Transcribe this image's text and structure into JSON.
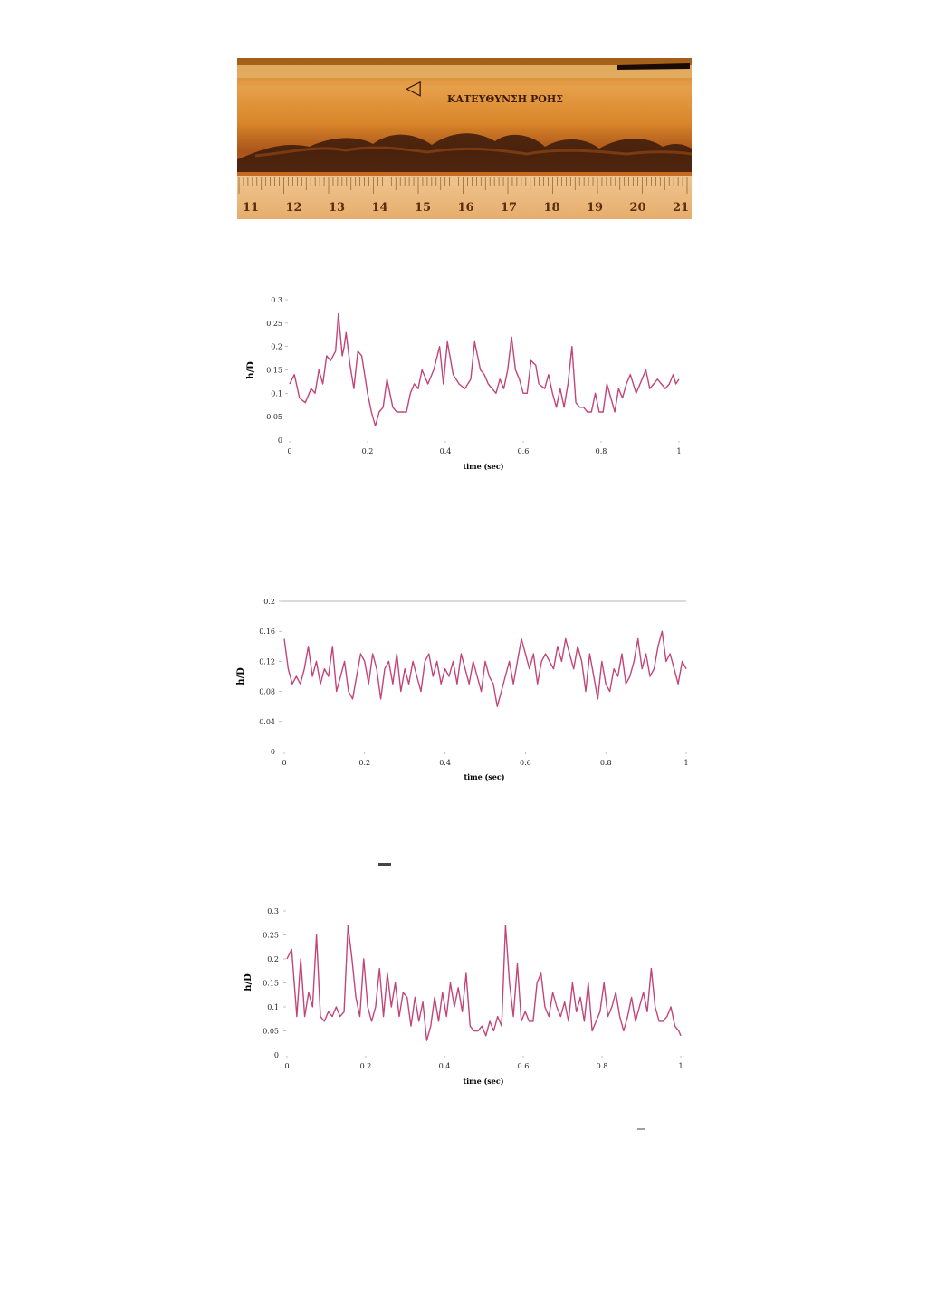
{
  "photo": {
    "caption": "ΚΑΤΕΥΘΥΝΣΗ ΡΟΗΣ",
    "ruler_numbers": [
      "11",
      "12",
      "13",
      "14",
      "15",
      "16",
      "17",
      "18",
      "19",
      "20",
      "21"
    ],
    "colors": {
      "tube": "#d9892c",
      "tube_dark": "#b55d18",
      "wave": "#2a140a",
      "ruler": "#e9b77c"
    }
  },
  "chart_data": [
    {
      "type": "line",
      "xlabel": "time (sec)",
      "ylabel": "h/D",
      "xlim": [
        0,
        1
      ],
      "ylim": [
        0,
        0.3
      ],
      "x_ticks": [
        "0",
        "0.2",
        "0.4",
        "0.6",
        "0.8",
        "1"
      ],
      "y_ticks": [
        "0",
        "0.05",
        "0.1",
        "0.15",
        "0.2",
        "0.25",
        "0.3"
      ],
      "gridlines": false,
      "line_color": "#c2457a",
      "series": [
        {
          "x": [
            0,
            0.012,
            0.025,
            0.04,
            0.055,
            0.065,
            0.075,
            0.085,
            0.095,
            0.105,
            0.118,
            0.125,
            0.135,
            0.14,
            0.145,
            0.155,
            0.165,
            0.175,
            0.185,
            0.2,
            0.21,
            0.22,
            0.23,
            0.24,
            0.25,
            0.265,
            0.275,
            0.285,
            0.3,
            0.31,
            0.32,
            0.33,
            0.34,
            0.355,
            0.37,
            0.385,
            0.395,
            0.405,
            0.42,
            0.435,
            0.45,
            0.465,
            0.475,
            0.49,
            0.5,
            0.51,
            0.52,
            0.53,
            0.54,
            0.55,
            0.56,
            0.57,
            0.58,
            0.59,
            0.6,
            0.61,
            0.62,
            0.632,
            0.64,
            0.655,
            0.665,
            0.675,
            0.685,
            0.695,
            0.705,
            0.715,
            0.725,
            0.735,
            0.745,
            0.755,
            0.765,
            0.775,
            0.785,
            0.795,
            0.805,
            0.815,
            0.825,
            0.835,
            0.845,
            0.855,
            0.865,
            0.875,
            0.89,
            0.905,
            0.915,
            0.925,
            0.935,
            0.945,
            0.955,
            0.965,
            0.975,
            0.985,
            0.992,
            1.0
          ],
          "y": [
            0.12,
            0.14,
            0.09,
            0.08,
            0.11,
            0.1,
            0.15,
            0.12,
            0.18,
            0.17,
            0.19,
            0.27,
            0.18,
            0.2,
            0.23,
            0.16,
            0.11,
            0.19,
            0.18,
            0.1,
            0.06,
            0.03,
            0.06,
            0.07,
            0.13,
            0.07,
            0.06,
            0.06,
            0.06,
            0.1,
            0.12,
            0.11,
            0.15,
            0.12,
            0.15,
            0.2,
            0.12,
            0.21,
            0.14,
            0.12,
            0.11,
            0.13,
            0.21,
            0.15,
            0.14,
            0.12,
            0.11,
            0.1,
            0.13,
            0.11,
            0.15,
            0.22,
            0.15,
            0.13,
            0.1,
            0.1,
            0.17,
            0.16,
            0.12,
            0.11,
            0.14,
            0.1,
            0.07,
            0.11,
            0.07,
            0.12,
            0.2,
            0.08,
            0.07,
            0.07,
            0.06,
            0.06,
            0.1,
            0.06,
            0.06,
            0.12,
            0.09,
            0.06,
            0.11,
            0.09,
            0.12,
            0.14,
            0.1,
            0.13,
            0.15,
            0.11,
            0.12,
            0.13,
            0.12,
            0.11,
            0.12,
            0.14,
            0.12,
            0.13
          ]
        }
      ]
    },
    {
      "type": "line",
      "xlabel": "time (sec)",
      "ylabel": "h/D",
      "xlim": [
        0,
        1
      ],
      "ylim": [
        0,
        0.2
      ],
      "x_ticks": [
        "0",
        "0.2",
        "0.4",
        "0.6",
        "0.8",
        "1"
      ],
      "y_ticks": [
        "0",
        "0.04",
        "0.08",
        "0.12",
        "0.16",
        "0.2"
      ],
      "gridlines": false,
      "top_rule": true,
      "line_color": "#c2457a",
      "series": [
        {
          "x": [
            0,
            0.01,
            0.02,
            0.03,
            0.04,
            0.05,
            0.06,
            0.07,
            0.08,
            0.09,
            0.1,
            0.11,
            0.12,
            0.13,
            0.14,
            0.15,
            0.16,
            0.17,
            0.18,
            0.19,
            0.2,
            0.21,
            0.22,
            0.23,
            0.24,
            0.25,
            0.26,
            0.27,
            0.28,
            0.29,
            0.3,
            0.31,
            0.32,
            0.33,
            0.34,
            0.35,
            0.36,
            0.37,
            0.38,
            0.39,
            0.4,
            0.41,
            0.42,
            0.43,
            0.44,
            0.45,
            0.46,
            0.47,
            0.48,
            0.49,
            0.5,
            0.51,
            0.52,
            0.53,
            0.54,
            0.55,
            0.56,
            0.57,
            0.58,
            0.59,
            0.6,
            0.61,
            0.62,
            0.63,
            0.64,
            0.65,
            0.66,
            0.67,
            0.68,
            0.69,
            0.7,
            0.71,
            0.72,
            0.73,
            0.74,
            0.75,
            0.76,
            0.77,
            0.78,
            0.79,
            0.8,
            0.81,
            0.82,
            0.83,
            0.84,
            0.85,
            0.86,
            0.87,
            0.88,
            0.89,
            0.9,
            0.91,
            0.92,
            0.93,
            0.94,
            0.95,
            0.96,
            0.97,
            0.98,
            0.99,
            1.0
          ],
          "y": [
            0.15,
            0.11,
            0.09,
            0.1,
            0.09,
            0.11,
            0.14,
            0.1,
            0.12,
            0.09,
            0.11,
            0.1,
            0.14,
            0.08,
            0.1,
            0.12,
            0.08,
            0.07,
            0.1,
            0.13,
            0.12,
            0.09,
            0.13,
            0.11,
            0.07,
            0.11,
            0.12,
            0.09,
            0.13,
            0.08,
            0.11,
            0.09,
            0.12,
            0.1,
            0.08,
            0.12,
            0.13,
            0.1,
            0.12,
            0.09,
            0.11,
            0.1,
            0.12,
            0.09,
            0.13,
            0.11,
            0.09,
            0.12,
            0.1,
            0.08,
            0.12,
            0.1,
            0.09,
            0.06,
            0.08,
            0.1,
            0.12,
            0.09,
            0.12,
            0.15,
            0.13,
            0.11,
            0.13,
            0.09,
            0.12,
            0.13,
            0.12,
            0.11,
            0.14,
            0.12,
            0.15,
            0.13,
            0.11,
            0.14,
            0.12,
            0.08,
            0.13,
            0.1,
            0.07,
            0.12,
            0.09,
            0.08,
            0.11,
            0.1,
            0.13,
            0.09,
            0.1,
            0.12,
            0.15,
            0.11,
            0.13,
            0.1,
            0.11,
            0.14,
            0.16,
            0.12,
            0.13,
            0.11,
            0.09,
            0.12,
            0.11
          ]
        }
      ]
    },
    {
      "type": "line",
      "xlabel": "time (sec)",
      "ylabel": "h/D",
      "xlim": [
        0,
        1
      ],
      "ylim": [
        0,
        0.3
      ],
      "x_ticks": [
        "0",
        "0.2",
        "0.4",
        "0.6",
        "0.8",
        "1"
      ],
      "y_ticks": [
        "0",
        "0.05",
        "0.1",
        "0.15",
        "0.2",
        "0.25",
        "0.3"
      ],
      "gridlines": false,
      "line_color": "#c2457a",
      "series": [
        {
          "x": [
            0,
            0.012,
            0.025,
            0.035,
            0.045,
            0.055,
            0.065,
            0.075,
            0.085,
            0.095,
            0.105,
            0.115,
            0.125,
            0.135,
            0.145,
            0.155,
            0.165,
            0.175,
            0.185,
            0.195,
            0.205,
            0.215,
            0.225,
            0.235,
            0.245,
            0.255,
            0.265,
            0.275,
            0.285,
            0.295,
            0.305,
            0.315,
            0.325,
            0.335,
            0.345,
            0.355,
            0.365,
            0.375,
            0.385,
            0.395,
            0.405,
            0.415,
            0.425,
            0.435,
            0.445,
            0.455,
            0.465,
            0.475,
            0.485,
            0.495,
            0.505,
            0.515,
            0.525,
            0.535,
            0.545,
            0.555,
            0.565,
            0.575,
            0.585,
            0.595,
            0.605,
            0.615,
            0.625,
            0.635,
            0.645,
            0.655,
            0.665,
            0.675,
            0.685,
            0.695,
            0.705,
            0.715,
            0.725,
            0.735,
            0.745,
            0.755,
            0.765,
            0.775,
            0.785,
            0.795,
            0.805,
            0.815,
            0.825,
            0.835,
            0.845,
            0.855,
            0.865,
            0.875,
            0.885,
            0.895,
            0.905,
            0.915,
            0.925,
            0.935,
            0.945,
            0.955,
            0.965,
            0.975,
            0.985,
            0.995,
            1.0
          ],
          "y": [
            0.2,
            0.22,
            0.08,
            0.2,
            0.08,
            0.13,
            0.1,
            0.25,
            0.08,
            0.07,
            0.09,
            0.08,
            0.1,
            0.08,
            0.09,
            0.27,
            0.2,
            0.12,
            0.08,
            0.2,
            0.1,
            0.07,
            0.1,
            0.18,
            0.08,
            0.17,
            0.1,
            0.15,
            0.08,
            0.13,
            0.12,
            0.06,
            0.12,
            0.07,
            0.11,
            0.03,
            0.06,
            0.12,
            0.07,
            0.13,
            0.08,
            0.15,
            0.1,
            0.14,
            0.09,
            0.17,
            0.06,
            0.05,
            0.05,
            0.06,
            0.04,
            0.07,
            0.05,
            0.08,
            0.06,
            0.27,
            0.15,
            0.08,
            0.19,
            0.07,
            0.09,
            0.07,
            0.07,
            0.15,
            0.17,
            0.1,
            0.08,
            0.13,
            0.1,
            0.08,
            0.11,
            0.07,
            0.15,
            0.09,
            0.12,
            0.07,
            0.15,
            0.05,
            0.07,
            0.09,
            0.15,
            0.08,
            0.1,
            0.13,
            0.08,
            0.05,
            0.08,
            0.12,
            0.07,
            0.1,
            0.13,
            0.09,
            0.18,
            0.1,
            0.07,
            0.07,
            0.08,
            0.1,
            0.06,
            0.05,
            0.04
          ]
        }
      ]
    }
  ]
}
